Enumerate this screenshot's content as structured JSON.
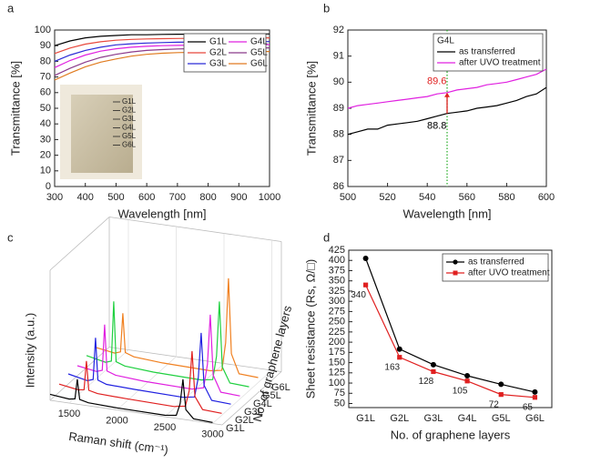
{
  "chart_data": [
    {
      "type": "line",
      "panel": "a",
      "x_label": "Wavelength [nm]",
      "y_label": "Transmittance [%]",
      "x": [
        300,
        350,
        400,
        450,
        500,
        550,
        600,
        650,
        700,
        800,
        900,
        1000
      ],
      "xlim": [
        300,
        1000
      ],
      "xticks": [
        300,
        400,
        500,
        600,
        700,
        800,
        900,
        1000
      ],
      "ylim": [
        0,
        100
      ],
      "yticks": [
        0,
        10,
        20,
        30,
        40,
        50,
        60,
        70,
        80,
        90,
        100
      ],
      "legend_loc": "upper right",
      "legend_columns": 2,
      "inset_labels": [
        "G1L",
        "G2L",
        "G3L",
        "G4L",
        "G5L",
        "G6L"
      ],
      "series": [
        {
          "name": "G1L",
          "color": "#000000",
          "values": [
            90,
            93,
            95,
            96,
            96.5,
            97,
            97,
            97.2,
            97.3,
            97.4,
            97.5,
            97.5
          ]
        },
        {
          "name": "G2L",
          "color": "#e8483c",
          "values": [
            85,
            88.5,
            91,
            92.5,
            93.5,
            94,
            94.3,
            94.5,
            94.6,
            94.8,
            95,
            95
          ]
        },
        {
          "name": "G3L",
          "color": "#2b2bd6",
          "values": [
            80,
            84,
            87,
            89,
            90.5,
            91.2,
            91.7,
            92,
            92.2,
            92.4,
            92.5,
            92.6
          ]
        },
        {
          "name": "G4L",
          "color": "#e020e0",
          "values": [
            76,
            80.5,
            84,
            86.5,
            88,
            89,
            89.6,
            90,
            90.2,
            90.5,
            90.6,
            90.7
          ]
        },
        {
          "name": "G5L",
          "color": "#8b3a8b",
          "values": [
            71,
            75.5,
            79.5,
            82.5,
            84.5,
            86,
            87,
            87.5,
            87.9,
            88.3,
            88.5,
            88.6
          ]
        },
        {
          "name": "G6L",
          "color": "#e07b20",
          "values": [
            68,
            72.5,
            76.5,
            79.5,
            81.5,
            83.3,
            84.5,
            85.2,
            85.6,
            86,
            86.2,
            86.3
          ]
        }
      ]
    },
    {
      "type": "line",
      "panel": "b",
      "x_label": "Wavelength [nm]",
      "y_label": "Transmittance [%]",
      "x": [
        500,
        505,
        510,
        515,
        520,
        525,
        530,
        535,
        540,
        545,
        550,
        555,
        560,
        565,
        570,
        575,
        580,
        585,
        590,
        595,
        600
      ],
      "xlim": [
        500,
        600
      ],
      "xticks": [
        500,
        520,
        540,
        560,
        580,
        600
      ],
      "ylim": [
        86,
        92
      ],
      "yticks": [
        86,
        87,
        88,
        89,
        90,
        91,
        92
      ],
      "legend_loc": "upper right",
      "legend_columns": 1,
      "legend_title": "G4L",
      "vline": 550,
      "vline_color": "#22aa22",
      "annotations": [
        {
          "x": 550,
          "y": 89.6,
          "text": "89.6",
          "color": "#e02020"
        },
        {
          "x": 550,
          "y": 88.8,
          "text": "88.8",
          "color": "#000000"
        }
      ],
      "series": [
        {
          "name": "as transferred",
          "color": "#000000",
          "values": [
            88.0,
            88.1,
            88.2,
            88.2,
            88.35,
            88.4,
            88.45,
            88.5,
            88.6,
            88.7,
            88.8,
            88.85,
            88.9,
            89.0,
            89.05,
            89.1,
            89.2,
            89.3,
            89.45,
            89.55,
            89.8
          ]
        },
        {
          "name": "after UVO treatment",
          "color": "#e020e0",
          "values": [
            89.0,
            89.1,
            89.15,
            89.2,
            89.25,
            89.3,
            89.35,
            89.4,
            89.45,
            89.55,
            89.6,
            89.7,
            89.75,
            89.8,
            89.9,
            89.95,
            90.0,
            90.1,
            90.2,
            90.3,
            90.5
          ]
        }
      ]
    },
    {
      "type": "waterfall3d",
      "panel": "c",
      "x_label": "Raman shift (cm⁻¹)",
      "y_label": "Intensity (a.u.)",
      "z_label": "No. of graphene layers",
      "x": [
        1300,
        1500,
        1560,
        1585,
        1610,
        1700,
        2000,
        2500,
        2620,
        2660,
        2690,
        2720,
        2800,
        3000
      ],
      "xlim": [
        1300,
        3100
      ],
      "xticks": [
        1500,
        2000,
        2500,
        3000
      ],
      "ylim": [
        0,
        10
      ],
      "series": [
        {
          "name": "G1L",
          "color": "#000000",
          "values": [
            0.6,
            0.4,
            0.5,
            2.5,
            0.5,
            0.3,
            0.2,
            0.15,
            0.3,
            1.5,
            4,
            1,
            0.2,
            0.1
          ]
        },
        {
          "name": "G2L",
          "color": "#e02020",
          "values": [
            0.8,
            0.5,
            0.6,
            3.5,
            0.6,
            0.4,
            0.3,
            0.2,
            0.4,
            2,
            6,
            1.5,
            0.3,
            0.2
          ]
        },
        {
          "name": "G3L",
          "color": "#2020e0",
          "values": [
            1,
            0.6,
            0.8,
            5,
            0.8,
            0.5,
            0.4,
            0.3,
            0.5,
            2.5,
            7,
            1.8,
            0.4,
            0.3
          ]
        },
        {
          "name": "G4L",
          "color": "#e020e0",
          "values": [
            1,
            0.7,
            0.9,
            5.5,
            0.9,
            0.6,
            0.4,
            0.3,
            0.6,
            3,
            8,
            2,
            0.4,
            0.3
          ]
        },
        {
          "name": "G5L",
          "color": "#20d040",
          "values": [
            1.2,
            0.8,
            1,
            7,
            1,
            0.7,
            0.5,
            0.4,
            0.6,
            3,
            8.5,
            2,
            0.5,
            0.4
          ]
        },
        {
          "name": "G6L",
          "color": "#f08020",
          "values": [
            1.2,
            0.9,
            1.1,
            5,
            1.1,
            0.8,
            0.6,
            0.5,
            0.7,
            3.5,
            10,
            2.5,
            0.6,
            0.5
          ]
        }
      ]
    },
    {
      "type": "line",
      "panel": "d",
      "x_label": "No. of graphene layers",
      "y_label": "Sheet resistance (Rs, Ω/□)",
      "categories": [
        "G1L",
        "G2L",
        "G3L",
        "G4L",
        "G5L",
        "G6L"
      ],
      "ylim": [
        40,
        425
      ],
      "yticks": [
        50,
        75,
        100,
        125,
        150,
        175,
        200,
        225,
        250,
        275,
        300,
        325,
        350,
        375,
        400,
        425
      ],
      "legend_loc": "upper right",
      "legend_columns": 1,
      "series": [
        {
          "name": "as transferred",
          "color": "#000000",
          "marker": "circle",
          "values": [
            405,
            183,
            145,
            118,
            97,
            78
          ]
        },
        {
          "name": "after UVO treatment",
          "color": "#e02020",
          "marker": "square",
          "show_labels": true,
          "values": [
            340,
            163,
            128,
            105,
            72,
            65
          ]
        }
      ]
    }
  ]
}
